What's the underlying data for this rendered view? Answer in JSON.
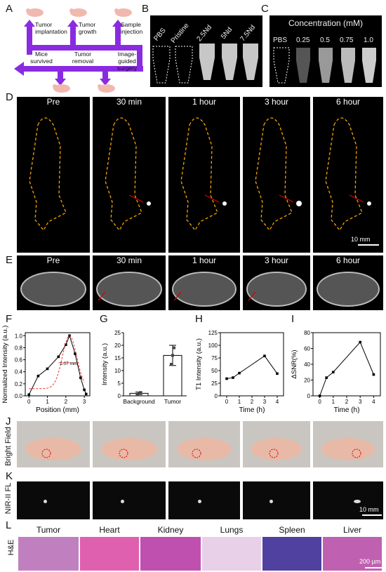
{
  "panels": {
    "A": {
      "label": "A",
      "steps": [
        "Tumor implantation",
        "Tumor growth",
        "Sample injection",
        "Mice survived",
        "Tumor removal",
        "Image-guided surgery"
      ]
    },
    "B": {
      "label": "B",
      "tubes": [
        "PBS",
        "Pristine",
        "2.5Nd",
        "5Nd",
        "7.5Nd"
      ]
    },
    "C": {
      "label": "C",
      "title": "Concentration (mM)",
      "tubes": [
        "PBS",
        "0.25",
        "0.5",
        "0.75",
        "1.0"
      ]
    },
    "D": {
      "label": "D",
      "times": [
        "Pre",
        "30 min",
        "1 hour",
        "3 hour",
        "6 hour"
      ],
      "scale": "10 mm"
    },
    "E": {
      "label": "E",
      "times": [
        "Pre",
        "30 min",
        "1 hour",
        "3 hour",
        "6 hour"
      ]
    },
    "F": {
      "label": "F",
      "annotation": "1.07 mm"
    },
    "G": {
      "label": "G"
    },
    "H": {
      "label": "H"
    },
    "I": {
      "label": "I"
    },
    "J": {
      "label": "J",
      "row_label": "Bright Field"
    },
    "K": {
      "label": "K",
      "row_label": "NIR-II FL",
      "scale": "10 mm"
    },
    "L": {
      "label": "L",
      "row_label": "H&E",
      "organs": [
        "Tumor",
        "Heart",
        "Kidney",
        "Lungs",
        "Spleen",
        "Liver"
      ],
      "scale": "200 µm"
    }
  },
  "chart_data": [
    {
      "type": "line",
      "panel": "F",
      "xlabel": "Position (mm)",
      "ylabel": "Normalized Intensity (a.u.)",
      "x": [
        0,
        0.5,
        1.0,
        1.6,
        2.0,
        2.2,
        2.5,
        2.8,
        3.0,
        3.1
      ],
      "y": [
        0.02,
        0.33,
        0.45,
        0.65,
        0.85,
        1.0,
        0.7,
        0.3,
        0.1,
        0.03
      ],
      "xlim": [
        -0.2,
        3.3
      ],
      "ylim": [
        0,
        1.05
      ],
      "xticks": [
        0,
        1,
        2,
        3
      ],
      "yticks": [
        0.0,
        0.2,
        0.4,
        0.6,
        0.8,
        1.0
      ],
      "fit": {
        "style": "dashed",
        "color": "#e33"
      }
    },
    {
      "type": "bar",
      "panel": "G",
      "ylabel": "Intensity (a.u.)",
      "categories": [
        "Background",
        "Tumor"
      ],
      "values": [
        1.0,
        16.0
      ],
      "errors": [
        0.5,
        4.0
      ],
      "points": [
        [
          0.5,
          1.0,
          1.3
        ],
        [
          12.5,
          16.0,
          19.0
        ]
      ],
      "ylim": [
        0,
        25
      ],
      "yticks": [
        0,
        5,
        10,
        15,
        20,
        25
      ]
    },
    {
      "type": "line",
      "panel": "H",
      "xlabel": "Time (h)",
      "ylabel": "T1 Intensity (a.u.)",
      "x": [
        0,
        0.5,
        1,
        3,
        4
      ],
      "y": [
        34,
        36,
        45,
        79,
        44
      ],
      "xlim": [
        -0.5,
        4.5
      ],
      "ylim": [
        0,
        125
      ],
      "xticks": [
        0,
        1,
        2,
        3,
        4
      ],
      "yticks": [
        0,
        25,
        50,
        75,
        100,
        125
      ]
    },
    {
      "type": "line",
      "panel": "I",
      "xlabel": "Time (h)",
      "ylabel": "ΔSNR(%)",
      "x": [
        0,
        0.5,
        1,
        3,
        4
      ],
      "y": [
        0,
        23,
        30,
        68,
        27
      ],
      "xlim": [
        -0.5,
        4.5
      ],
      "ylim": [
        0,
        80
      ],
      "xticks": [
        0,
        1,
        2,
        3,
        4
      ],
      "yticks": [
        0,
        20,
        40,
        60,
        80
      ]
    }
  ],
  "colors": {
    "arrow": "#8a2be2",
    "dash": "#f4a300",
    "red": "#d00",
    "accent": "#e33"
  }
}
